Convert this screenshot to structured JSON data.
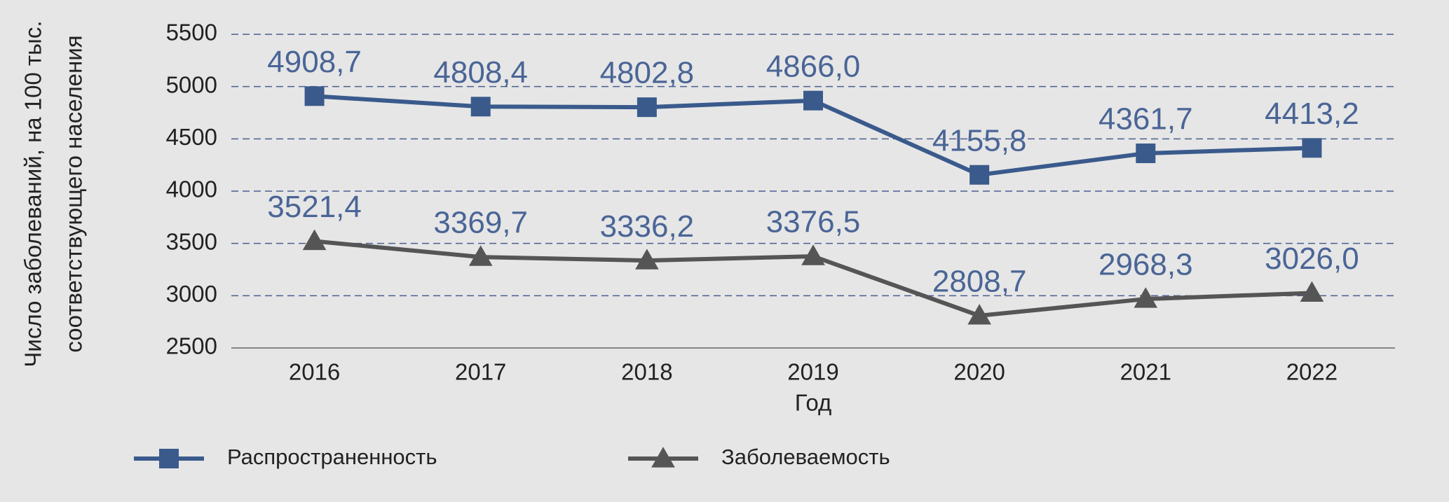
{
  "chart_data": {
    "type": "line",
    "x_label": "Год",
    "y_label": [
      "Число заболеваний, на 100 тыс.",
      "соответствующего населения"
    ],
    "categories": [
      "2016",
      "2017",
      "2018",
      "2019",
      "2020",
      "2021",
      "2022"
    ],
    "series": [
      {
        "name": "Распространенность",
        "color": "#3a5a8c",
        "marker": "square",
        "values": [
          4908.7,
          4808.4,
          4802.8,
          4866.0,
          4155.8,
          4361.7,
          4413.2
        ],
        "value_labels": [
          "4908,7",
          "4808,4",
          "4802,8",
          "4866,0",
          "4155,8",
          "4361,7",
          "4413,2"
        ]
      },
      {
        "name": "Заболеваемость",
        "color": "#555555",
        "marker": "triangle",
        "values": [
          3521.4,
          3369.7,
          3336.2,
          3376.5,
          2808.7,
          2968.3,
          3026.0
        ],
        "value_labels": [
          "3521,4",
          "3369,7",
          "3336,2",
          "3376,5",
          "2808,7",
          "2968,3",
          "3026,0"
        ]
      }
    ],
    "value_label_color": "#4a6596",
    "ylim": [
      2500,
      5500
    ],
    "yticks": [
      2500,
      3000,
      3500,
      4000,
      4500,
      5000,
      5500
    ],
    "grid": true,
    "grid_color": "#4a5f8f"
  }
}
